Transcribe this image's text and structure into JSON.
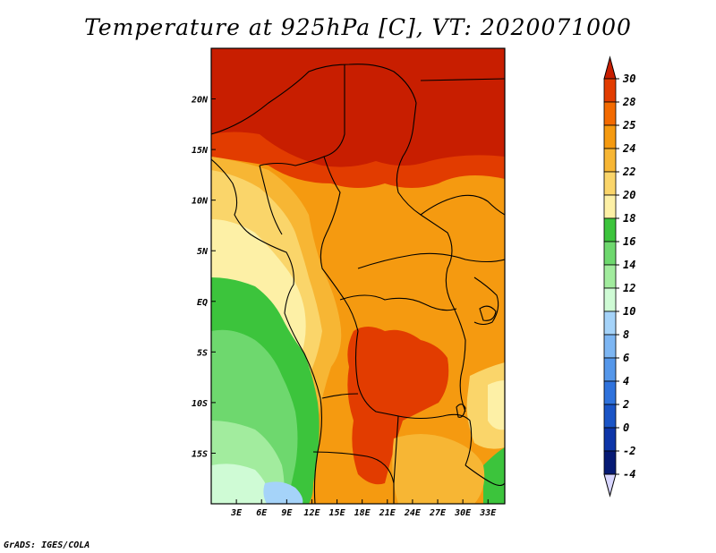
{
  "title": "Temperature at 925hPa [C], VT: 2020071000",
  "credit": "GrADS: IGES/COLA",
  "map": {
    "lon_range": [
      0,
      35
    ],
    "lat_range": [
      -20,
      25
    ],
    "lon_ticks": [
      {
        "value": 3,
        "label": "3E"
      },
      {
        "value": 6,
        "label": "6E"
      },
      {
        "value": 9,
        "label": "9E"
      },
      {
        "value": 12,
        "label": "12E"
      },
      {
        "value": 15,
        "label": "15E"
      },
      {
        "value": 18,
        "label": "18E"
      },
      {
        "value": 21,
        "label": "21E"
      },
      {
        "value": 24,
        "label": "24E"
      },
      {
        "value": 27,
        "label": "27E"
      },
      {
        "value": 30,
        "label": "30E"
      },
      {
        "value": 33,
        "label": "33E"
      }
    ],
    "lat_ticks": [
      {
        "value": 20,
        "label": "20N"
      },
      {
        "value": 15,
        "label": "15N"
      },
      {
        "value": 10,
        "label": "10N"
      },
      {
        "value": 5,
        "label": "5N"
      },
      {
        "value": 0,
        "label": "EQ"
      },
      {
        "value": -5,
        "label": "5S"
      },
      {
        "value": -10,
        "label": "10S"
      },
      {
        "value": -15,
        "label": "15S"
      }
    ]
  },
  "colorbar": {
    "levels": [
      "30",
      "28",
      "25",
      "24",
      "22",
      "20",
      "18",
      "16",
      "14",
      "12",
      "10",
      "8",
      "6",
      "4",
      "2",
      "0",
      "-2",
      "-4"
    ],
    "colors": [
      "#c81e00",
      "#e23c00",
      "#f36a00",
      "#f59a10",
      "#f7b634",
      "#fad56a",
      "#fdf0a6",
      "#3cc43c",
      "#6ed86e",
      "#a2ec9e",
      "#cffbd5",
      "#a5d3f9",
      "#7db6f3",
      "#5597ea",
      "#2f72dc",
      "#1a54c6",
      "#0d35a8",
      "#061a74",
      "#d8d6ff"
    ]
  }
}
